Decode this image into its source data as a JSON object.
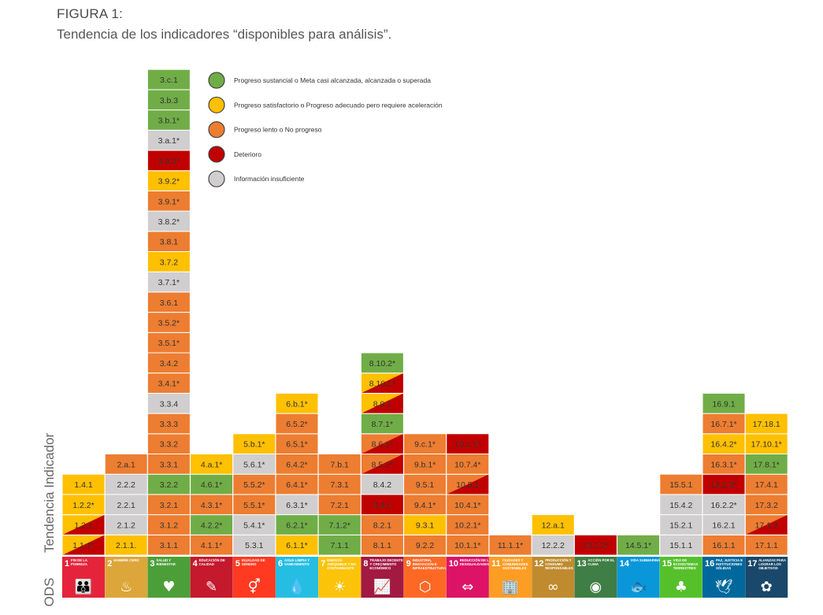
{
  "figure": {
    "title": "FIGURA 1:",
    "subtitle": "Tendencia de los indicadores “disponibles para análisis”."
  },
  "colors": {
    "green": "#70ad47",
    "yellow": "#ffc000",
    "orange": "#ed7d31",
    "red": "#c00000",
    "grey": "#d0cece"
  },
  "chart_data": {
    "type": "table",
    "xlabel": "ODS",
    "ylabel": "Tendencia Indicador",
    "legend_position": "top",
    "legend": [
      {
        "status": "green",
        "label": "Progreso sustancial o Meta casi alcanzada, alcanzada o superada"
      },
      {
        "status": "yellow",
        "label": "Progreso satisfactorio o Progreso adecuado pero requiere aceleración"
      },
      {
        "status": "orange",
        "label": "Progreso lento o No progreso"
      },
      {
        "status": "red",
        "label": "Deterioro"
      },
      {
        "status": "grey",
        "label": "Información insuficiente"
      }
    ],
    "goals": [
      {
        "num": "1",
        "label": "FIN DE LA POBREZA",
        "color": "#e5243b",
        "icon": "people-icon",
        "glyph": "👪",
        "indicators": [
          [
            "1.1.1*",
            "yellow",
            "red"
          ],
          [
            "1.2.1",
            "yellow",
            "red"
          ],
          [
            "1.2.2*",
            "yellow"
          ],
          [
            "1.4.1",
            "yellow"
          ]
        ]
      },
      {
        "num": "2",
        "label": "HAMBRE CERO",
        "color": "#dda63a",
        "icon": "bowl-icon",
        "glyph": "♨",
        "indicators": [
          [
            "2.1.1.",
            "yellow"
          ],
          [
            "2.1.2",
            "grey"
          ],
          [
            "2.2.1",
            "grey"
          ],
          [
            "2.2.2",
            "grey"
          ],
          [
            "2.a.1",
            "orange"
          ]
        ]
      },
      {
        "num": "3",
        "label": "SALUD Y BIENESTAR",
        "color": "#4c9f38",
        "icon": "heartbeat-icon",
        "glyph": "♥",
        "indicators": [
          [
            "3.1.1",
            "orange"
          ],
          [
            "3.1.2",
            "orange"
          ],
          [
            "3.2.1",
            "orange"
          ],
          [
            "3.2.2",
            "green"
          ],
          [
            "3.3.1",
            "orange"
          ],
          [
            "3.3.2",
            "orange"
          ],
          [
            "3.3.3",
            "orange"
          ],
          [
            "3.3.4",
            "grey"
          ],
          [
            "3.4.1*",
            "orange"
          ],
          [
            "3.4.2",
            "orange"
          ],
          [
            "3.5.1*",
            "orange"
          ],
          [
            "3.5.2*",
            "orange"
          ],
          [
            "3.6.1",
            "orange"
          ],
          [
            "3.7.1*",
            "grey"
          ],
          [
            "3.7.2",
            "yellow"
          ],
          [
            "3.8.1",
            "orange"
          ],
          [
            "3.8.2*",
            "grey"
          ],
          [
            "3.9.1*",
            "orange"
          ],
          [
            "3.9.2*",
            "yellow"
          ],
          [
            "3.9.3*",
            "red"
          ],
          [
            "3.a.1*",
            "grey"
          ],
          [
            "3.b.1*",
            "green"
          ],
          [
            "3.b.3",
            "green"
          ],
          [
            "3.c.1",
            "green"
          ]
        ]
      },
      {
        "num": "4",
        "label": "EDUCACIÓN DE CALIDAD",
        "color": "#c5192d",
        "icon": "book-icon",
        "glyph": "✎",
        "indicators": [
          [
            "4.1.1*",
            "orange"
          ],
          [
            "4.2.2*",
            "green"
          ],
          [
            "4.3.1*",
            "orange"
          ],
          [
            "4.6.1*",
            "green"
          ],
          [
            "4.a.1*",
            "yellow"
          ]
        ]
      },
      {
        "num": "5",
        "label": "IGUALDAD DE GÉNERO",
        "color": "#ff3a21",
        "icon": "gender-icon",
        "glyph": "⚥",
        "indicators": [
          [
            "5.3.1",
            "grey"
          ],
          [
            "5.4.1*",
            "grey"
          ],
          [
            "5.5.1*",
            "orange"
          ],
          [
            "5.5.2*",
            "orange"
          ],
          [
            "5.6.1*",
            "grey"
          ],
          [
            "5.b.1*",
            "yellow"
          ]
        ]
      },
      {
        "num": "6",
        "label": "AGUA LIMPIA Y SANEAMIENTO",
        "color": "#26bde2",
        "icon": "water-icon",
        "glyph": "💧",
        "indicators": [
          [
            "6.1.1*",
            "yellow"
          ],
          [
            "6.2.1*",
            "green"
          ],
          [
            "6.3.1*",
            "grey"
          ],
          [
            "6.4.1*",
            "orange"
          ],
          [
            "6.4.2*",
            "orange"
          ],
          [
            "6.5.1*",
            "orange"
          ],
          [
            "6.5.2*",
            "orange"
          ],
          [
            "6.b.1*",
            "yellow"
          ]
        ]
      },
      {
        "num": "7",
        "label": "ENERGÍA ASEQUIBLE Y NO CONTAMINANTE",
        "color": "#fcc30b",
        "icon": "sun-icon",
        "glyph": "☀",
        "indicators": [
          [
            "7.1.1",
            "green"
          ],
          [
            "7.1.2*",
            "green"
          ],
          [
            "7.2.1",
            "orange"
          ],
          [
            "7.3.1",
            "orange"
          ],
          [
            "7.b.1",
            "orange"
          ]
        ]
      },
      {
        "num": "8",
        "label": "TRABAJO DECENTE Y CRECIMIENTO ECONÓMICO",
        "color": "#a21942",
        "icon": "growth-icon",
        "glyph": "📈",
        "indicators": [
          [
            "8.1.1",
            "orange"
          ],
          [
            "8.2.1",
            "orange"
          ],
          [
            "8.3.1",
            "red"
          ],
          [
            "8.4.2",
            "grey"
          ],
          [
            "8.5.2*",
            "orange",
            "red"
          ],
          [
            "8.6.1*",
            "orange",
            "red"
          ],
          [
            "8.7.1*",
            "green"
          ],
          [
            "8.9.1",
            "yellow",
            "red"
          ],
          [
            "8.10.1*",
            "yellow",
            "red"
          ],
          [
            "8.10.2*",
            "green"
          ]
        ]
      },
      {
        "num": "9",
        "label": "INDUSTRIA, INNOVACIÓN E INFRAESTRUCTURA",
        "color": "#fd6925",
        "icon": "cubes-icon",
        "glyph": "⬡",
        "indicators": [
          [
            "9.2.2",
            "orange"
          ],
          [
            "9.3.1",
            "yellow"
          ],
          [
            "9.4.1*",
            "orange"
          ],
          [
            "9.5.1",
            "orange"
          ],
          [
            "9.b.1*",
            "orange"
          ],
          [
            "9.c.1*",
            "orange"
          ]
        ]
      },
      {
        "num": "10",
        "label": "REDUCCIÓN DE LAS DESIGUALDADES",
        "color": "#dd1367",
        "icon": "equality-icon",
        "glyph": "⇔",
        "indicators": [
          [
            "10.1.1*",
            "orange"
          ],
          [
            "10.2.1*",
            "orange"
          ],
          [
            "10.4.1*",
            "orange"
          ],
          [
            "10.5.1",
            "orange",
            "red"
          ],
          [
            "10.7.4*",
            "orange"
          ],
          [
            "10.c.1*",
            "red"
          ]
        ]
      },
      {
        "num": "11",
        "label": "CIUDADES Y COMUNIDADES SOSTENIBLES",
        "color": "#fd9d24",
        "icon": "city-icon",
        "glyph": "🏢",
        "indicators": [
          [
            "11.1.1*",
            "orange"
          ]
        ]
      },
      {
        "num": "12",
        "label": "PRODUCCIÓN Y CONSUMO RESPONSABLES",
        "color": "#bf8b2e",
        "icon": "infinity-icon",
        "glyph": "∞",
        "indicators": [
          [
            "12.2.2",
            "grey"
          ],
          [
            "12.a.1",
            "yellow"
          ]
        ]
      },
      {
        "num": "13",
        "label": "ACCIÓN POR EL CLIMA",
        "color": "#3f7e44",
        "icon": "eye-earth-icon",
        "glyph": "◉",
        "indicators": [
          [
            "13.2.2*",
            "red"
          ]
        ]
      },
      {
        "num": "14",
        "label": "VIDA SUBMARINA",
        "color": "#0a97d9",
        "icon": "fish-icon",
        "glyph": "🐟",
        "indicators": [
          [
            "14.5.1*",
            "green"
          ]
        ]
      },
      {
        "num": "15",
        "label": "VIDA DE ECOSISTEMAS TERRESTRES",
        "color": "#56c02b",
        "icon": "tree-icon",
        "glyph": "♣",
        "indicators": [
          [
            "15.1.1",
            "grey"
          ],
          [
            "15.2.1",
            "grey"
          ],
          [
            "15.4.2",
            "grey"
          ],
          [
            "15.5.1",
            "orange"
          ]
        ]
      },
      {
        "num": "16",
        "label": "PAZ, JUSTICIA E INSTITUCIONES SÓLIDAS",
        "color": "#00689d",
        "icon": "dove-icon",
        "glyph": "🕊",
        "indicators": [
          [
            "16.1.1",
            "orange"
          ],
          [
            "16.2.1",
            "grey"
          ],
          [
            "16.2.2*",
            "grey"
          ],
          [
            "16.2.3*",
            "red"
          ],
          [
            "16.3.1*",
            "orange"
          ],
          [
            "16.4.2*",
            "yellow"
          ],
          [
            "16.7.1*",
            "orange"
          ],
          [
            "16.9.1",
            "green"
          ]
        ]
      },
      {
        "num": "17",
        "label": "ALIANZAS PARA LOGRAR LOS OBJETIVOS",
        "color": "#19486a",
        "icon": "flower-icon",
        "glyph": "✿",
        "indicators": [
          [
            "17.1.1",
            "orange"
          ],
          [
            "17.1.2",
            "orange",
            "red"
          ],
          [
            "17.3.2",
            "orange"
          ],
          [
            "17.4.1",
            "orange"
          ],
          [
            "17.8.1*",
            "green"
          ],
          [
            "17.10.1*",
            "yellow"
          ],
          [
            "17.18.1",
            "yellow"
          ]
        ]
      }
    ]
  }
}
